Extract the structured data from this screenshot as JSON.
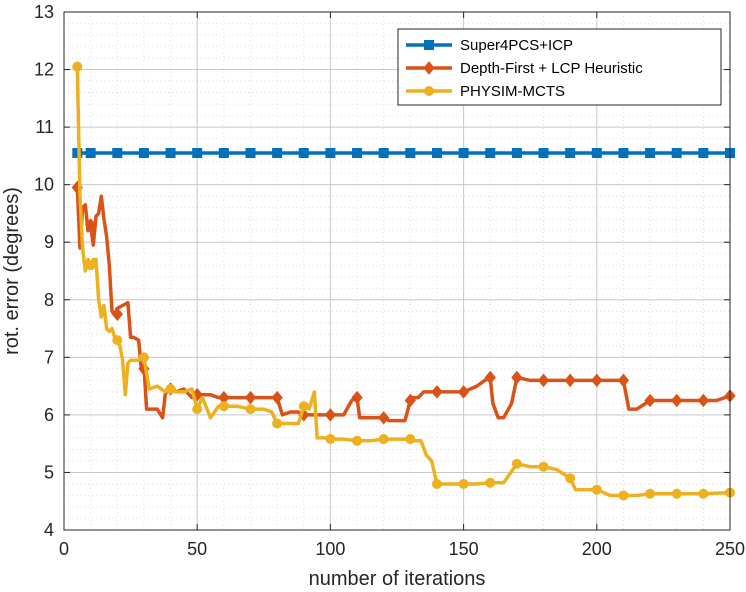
{
  "chart_data": {
    "type": "line",
    "xlabel": "number of iterations",
    "ylabel": "rot. error (degrees)",
    "xlim": [
      0,
      250
    ],
    "ylim": [
      4,
      13
    ],
    "xticks": [
      "0",
      "50",
      "100",
      "150",
      "200",
      "250"
    ],
    "yticks": [
      "4",
      "5",
      "6",
      "7",
      "8",
      "9",
      "10",
      "11",
      "12",
      "13"
    ],
    "grid": true,
    "legend_position": "top-right",
    "series": [
      {
        "name": "Super4PCS+ICP",
        "color": "#0072BD",
        "marker": "square",
        "x": [
          5,
          250
        ],
        "y": [
          10.55,
          10.55
        ],
        "marker_x": [
          5,
          10,
          20,
          30,
          40,
          50,
          60,
          70,
          80,
          90,
          100,
          110,
          120,
          130,
          140,
          150,
          160,
          170,
          180,
          190,
          200,
          210,
          220,
          230,
          240,
          250
        ],
        "marker_y": [
          10.55,
          10.55,
          10.55,
          10.55,
          10.55,
          10.55,
          10.55,
          10.55,
          10.55,
          10.55,
          10.55,
          10.55,
          10.55,
          10.55,
          10.55,
          10.55,
          10.55,
          10.55,
          10.55,
          10.55,
          10.55,
          10.55,
          10.55,
          10.55,
          10.55,
          10.55
        ]
      },
      {
        "name": "Depth-First + LCP Heuristic",
        "color": "#D95319",
        "marker": "diamond",
        "x": [
          5,
          6,
          7,
          8,
          9,
          10,
          11,
          12,
          13,
          14,
          15,
          16,
          17,
          18,
          19,
          20,
          22,
          24,
          25,
          26,
          28,
          29,
          30,
          31,
          33,
          35,
          37,
          38,
          39,
          40,
          42,
          45,
          48,
          50,
          52,
          55,
          58,
          60,
          65,
          70,
          75,
          80,
          82,
          85,
          88,
          90,
          92,
          95,
          98,
          100,
          105,
          108,
          110,
          111,
          113,
          115,
          118,
          120,
          122,
          125,
          128,
          130,
          131,
          133,
          135,
          137,
          140,
          145,
          150,
          155,
          158,
          160,
          161,
          163,
          165,
          168,
          170,
          175,
          180,
          185,
          190,
          195,
          200,
          205,
          210,
          212,
          215,
          220,
          225,
          230,
          235,
          240,
          245,
          248,
          250
        ],
        "y": [
          9.95,
          8.9,
          9.6,
          9.65,
          9.2,
          9.3,
          8.95,
          9.45,
          9.5,
          9.8,
          9.4,
          9.1,
          8.6,
          7.8,
          7.75,
          7.85,
          7.9,
          7.95,
          7.35,
          7.35,
          7.3,
          6.8,
          6.85,
          6.1,
          6.1,
          6.1,
          5.95,
          6.35,
          6.45,
          6.45,
          6.4,
          6.45,
          6.3,
          6.35,
          6.35,
          6.35,
          6.3,
          6.3,
          6.3,
          6.3,
          6.3,
          6.3,
          6.0,
          6.05,
          6.05,
          6.0,
          6.0,
          6.0,
          6.0,
          6.0,
          6.0,
          6.25,
          6.3,
          5.95,
          5.95,
          5.95,
          5.95,
          5.95,
          5.9,
          5.9,
          5.9,
          6.25,
          6.3,
          6.3,
          6.4,
          6.4,
          6.4,
          6.4,
          6.4,
          6.5,
          6.6,
          6.65,
          6.2,
          5.95,
          5.95,
          6.2,
          6.65,
          6.6,
          6.6,
          6.6,
          6.6,
          6.6,
          6.6,
          6.6,
          6.6,
          6.1,
          6.1,
          6.25,
          6.25,
          6.25,
          6.25,
          6.25,
          6.25,
          6.3,
          6.33
        ],
        "marker_x": [
          5,
          10,
          20,
          30,
          40,
          50,
          60,
          70,
          80,
          90,
          100,
          110,
          120,
          130,
          140,
          150,
          160,
          170,
          180,
          190,
          200,
          210,
          220,
          230,
          240,
          250
        ],
        "marker_y": [
          9.95,
          9.3,
          7.75,
          6.8,
          6.45,
          6.35,
          6.3,
          6.3,
          6.3,
          6.0,
          6.0,
          6.3,
          5.95,
          6.25,
          6.4,
          6.4,
          6.65,
          6.65,
          6.6,
          6.6,
          6.6,
          6.6,
          6.25,
          6.25,
          6.25,
          6.33
        ]
      },
      {
        "name": "PHYSIM-MCTS",
        "color": "#EDB120",
        "marker": "circle",
        "x": [
          5,
          6,
          7,
          8,
          9,
          10,
          11,
          12,
          13,
          14,
          15,
          16,
          17,
          18,
          19,
          20,
          21,
          22,
          23,
          24,
          25,
          26,
          28,
          30,
          32,
          35,
          38,
          40,
          42,
          45,
          48,
          50,
          52,
          55,
          58,
          60,
          65,
          70,
          75,
          78,
          80,
          85,
          88,
          90,
          92,
          94,
          95,
          98,
          100,
          105,
          110,
          115,
          120,
          125,
          130,
          132,
          134,
          136,
          138,
          140,
          145,
          150,
          155,
          160,
          165,
          170,
          175,
          180,
          185,
          190,
          192,
          195,
          200,
          205,
          210,
          215,
          220,
          230,
          240,
          250
        ],
        "y": [
          12.05,
          9.8,
          8.9,
          8.5,
          8.7,
          8.6,
          8.7,
          8.7,
          8.0,
          7.7,
          7.9,
          7.5,
          7.45,
          7.5,
          7.35,
          7.3,
          7.2,
          6.95,
          6.35,
          6.9,
          6.95,
          6.95,
          6.95,
          7.0,
          6.45,
          6.5,
          6.4,
          6.45,
          6.4,
          6.4,
          6.45,
          6.1,
          6.3,
          5.95,
          6.15,
          6.15,
          6.15,
          6.1,
          6.1,
          6.05,
          5.85,
          5.85,
          5.85,
          6.15,
          6.1,
          6.4,
          5.6,
          5.6,
          5.58,
          5.58,
          5.55,
          5.55,
          5.58,
          5.58,
          5.58,
          5.55,
          5.55,
          5.3,
          5.2,
          4.8,
          4.8,
          4.8,
          4.8,
          4.82,
          4.82,
          5.15,
          5.1,
          5.1,
          5.05,
          4.9,
          4.7,
          4.7,
          4.7,
          4.6,
          4.6,
          4.6,
          4.63,
          4.63,
          4.63,
          4.65
        ],
        "marker_x": [
          5,
          10,
          20,
          30,
          40,
          50,
          60,
          70,
          80,
          90,
          100,
          110,
          120,
          130,
          140,
          150,
          160,
          170,
          180,
          190,
          200,
          210,
          220,
          230,
          240,
          250
        ],
        "marker_y": [
          12.05,
          8.6,
          7.3,
          7.0,
          6.45,
          6.1,
          6.15,
          6.1,
          5.85,
          6.15,
          5.58,
          5.55,
          5.58,
          5.58,
          4.8,
          4.8,
          4.82,
          5.15,
          5.1,
          4.9,
          4.7,
          4.6,
          4.63,
          4.63,
          4.63,
          4.65
        ]
      }
    ]
  }
}
